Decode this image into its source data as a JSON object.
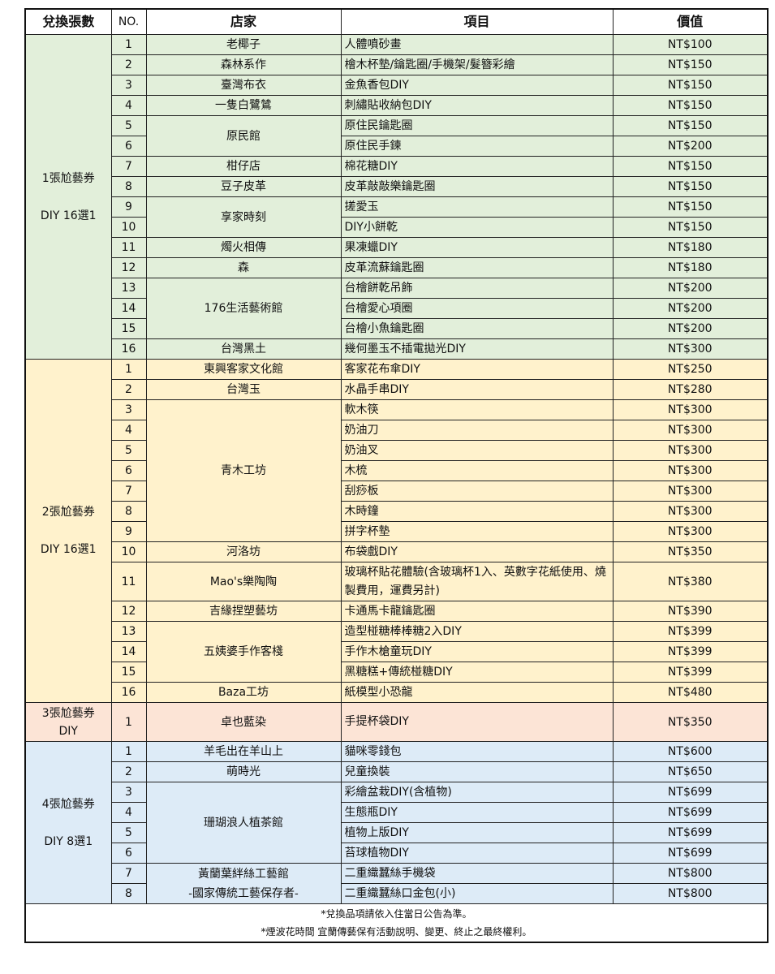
{
  "header": {
    "count": "兌換張數",
    "no": "NO.",
    "shop": "店家",
    "item": "項目",
    "value": "價值"
  },
  "sections": [
    {
      "label1": "1張尬藝券",
      "label2": "DIY 16選1",
      "spaced": true,
      "color": "#e2efda",
      "groups": [
        {
          "shop": "老椰子",
          "items": [
            {
              "no": "1",
              "item": "人體噴砂畫",
              "price": "NT$100"
            }
          ]
        },
        {
          "shop": "森林系作",
          "items": [
            {
              "no": "2",
              "item": "檜木杯墊/鑰匙圈/手機架/髮簪彩繪",
              "price": "NT$150"
            }
          ]
        },
        {
          "shop": "臺灣布衣",
          "items": [
            {
              "no": "3",
              "item": "金魚香包DIY",
              "price": "NT$150"
            }
          ]
        },
        {
          "shop": "一隻白鷺鷥",
          "items": [
            {
              "no": "4",
              "item": "刺繡貼收納包DIY",
              "price": "NT$150"
            }
          ]
        },
        {
          "shop": "原民館",
          "items": [
            {
              "no": "5",
              "item": "原住民鑰匙圈",
              "price": "NT$150"
            },
            {
              "no": "6",
              "item": "原住民手鍊",
              "price": "NT$200"
            }
          ]
        },
        {
          "shop": "柑仔店",
          "items": [
            {
              "no": "7",
              "item": "棉花糖DIY",
              "price": "NT$150"
            }
          ]
        },
        {
          "shop": "豆子皮革",
          "items": [
            {
              "no": "8",
              "item": "皮革敲敲樂鑰匙圈",
              "price": "NT$150"
            }
          ]
        },
        {
          "shop": "享家時刻",
          "items": [
            {
              "no": "9",
              "item": "搓愛玉",
              "price": "NT$150"
            },
            {
              "no": "10",
              "item": "DIY小餅乾",
              "price": "NT$150"
            }
          ]
        },
        {
          "shop": "燭火相傳",
          "items": [
            {
              "no": "11",
              "item": "果凍蠟DIY",
              "price": "NT$180"
            }
          ]
        },
        {
          "shop": "森",
          "items": [
            {
              "no": "12",
              "item": "皮革流蘇鑰匙圈",
              "price": "NT$180"
            }
          ]
        },
        {
          "shop": "176生活藝術館",
          "items": [
            {
              "no": "13",
              "item": "台檜餅乾吊飾",
              "price": "NT$200"
            },
            {
              "no": "14",
              "item": "台檜愛心項圈",
              "price": "NT$200"
            },
            {
              "no": "15",
              "item": "台檜小魚鑰匙圈",
              "price": "NT$200"
            }
          ]
        },
        {
          "shop": "台灣黑土",
          "items": [
            {
              "no": "16",
              "item": "幾何墨玉不插電拋光DIY",
              "price": "NT$300"
            }
          ]
        }
      ]
    },
    {
      "label1": "2張尬藝券",
      "label2": "DIY 16選1",
      "spaced": true,
      "color": "#fff2cc",
      "groups": [
        {
          "shop": "東興客家文化館",
          "items": [
            {
              "no": "1",
              "item": "客家花布傘DIY",
              "price": "NT$250"
            }
          ]
        },
        {
          "shop": "台灣玉",
          "items": [
            {
              "no": "2",
              "item": "水晶手串DIY",
              "price": "NT$280"
            }
          ]
        },
        {
          "shop": "青木工坊",
          "items": [
            {
              "no": "3",
              "item": "軟木筷",
              "price": "NT$300"
            },
            {
              "no": "4",
              "item": "奶油刀",
              "price": "NT$300"
            },
            {
              "no": "5",
              "item": "奶油叉",
              "price": "NT$300"
            },
            {
              "no": "6",
              "item": "木梳",
              "price": "NT$300"
            },
            {
              "no": "7",
              "item": "刮痧板",
              "price": "NT$300"
            },
            {
              "no": "8",
              "item": "木時鐘",
              "price": "NT$300"
            },
            {
              "no": "9",
              "item": "拼字杯墊",
              "price": "NT$300"
            }
          ]
        },
        {
          "shop": "河洛坊",
          "items": [
            {
              "no": "10",
              "item": "布袋戲DIY",
              "price": "NT$350"
            }
          ]
        },
        {
          "shop": "Mao's樂陶陶",
          "items": [
            {
              "no": "11",
              "item": "玻璃杯貼花體驗(含玻璃杯1入、英數字花紙使用、燒製費用，運費另計)",
              "price": "NT$380",
              "tall": true
            }
          ]
        },
        {
          "shop": "吉緣捏塑藝坊",
          "items": [
            {
              "no": "12",
              "item": "卡通馬卡龍鑰匙圈",
              "price": "NT$390"
            }
          ]
        },
        {
          "shop": "五姨婆手作客棧",
          "items": [
            {
              "no": "13",
              "item": "造型椪糖棒棒糖2入DIY",
              "price": "NT$399"
            },
            {
              "no": "14",
              "item": "手作木槍童玩DIY",
              "price": "NT$399"
            },
            {
              "no": "15",
              "item": "黑糖糕+傳統椪糖DIY",
              "price": "NT$399"
            }
          ]
        },
        {
          "shop": "Baza工坊",
          "items": [
            {
              "no": "16",
              "item": "紙模型小恐龍",
              "price": "NT$480"
            }
          ]
        }
      ]
    },
    {
      "label1": "3張尬藝券",
      "label2": "DIY",
      "spaced": false,
      "color": "#fce4d6",
      "groups": [
        {
          "shop": "卓也藍染",
          "items": [
            {
              "no": "1",
              "item": "手提杯袋DIY",
              "price": "NT$350",
              "tall": true
            }
          ]
        }
      ]
    },
    {
      "label1": "4張尬藝券",
      "label2": "DIY 8選1",
      "spaced": true,
      "color": "#ddebf7",
      "groups": [
        {
          "shop": "羊毛出在羊山上",
          "items": [
            {
              "no": "1",
              "item": "貓咪零錢包",
              "price": "NT$600"
            }
          ]
        },
        {
          "shop": "萌時光",
          "items": [
            {
              "no": "2",
              "item": "兒童換裝",
              "price": "NT$650"
            }
          ]
        },
        {
          "shop": "珊瑚浪人植茶館",
          "items": [
            {
              "no": "3",
              "item": "彩繪盆栽DIY(含植物)",
              "price": "NT$699"
            },
            {
              "no": "4",
              "item": "生態瓶DIY",
              "price": "NT$699"
            },
            {
              "no": "5",
              "item": "植物上版DIY",
              "price": "NT$699"
            },
            {
              "no": "6",
              "item": "苔球植物DIY",
              "price": "NT$699"
            }
          ]
        },
        {
          "shop": "黃蘭葉絆絲工藝館",
          "shop2": "-國家傳統工藝保存者-",
          "items": [
            {
              "no": "7",
              "item": "二重織蠶絲手機袋",
              "price": "NT$800"
            },
            {
              "no": "8",
              "item": "二重織蠶絲口金包(小)",
              "price": "NT$800"
            }
          ]
        }
      ]
    }
  ],
  "footer": {
    "note1": "*兌換品項請依入住當日公告為準。",
    "note2": "*煙波花時間 宜蘭傳藝保有活動說明、變更、終止之最終權利。"
  }
}
